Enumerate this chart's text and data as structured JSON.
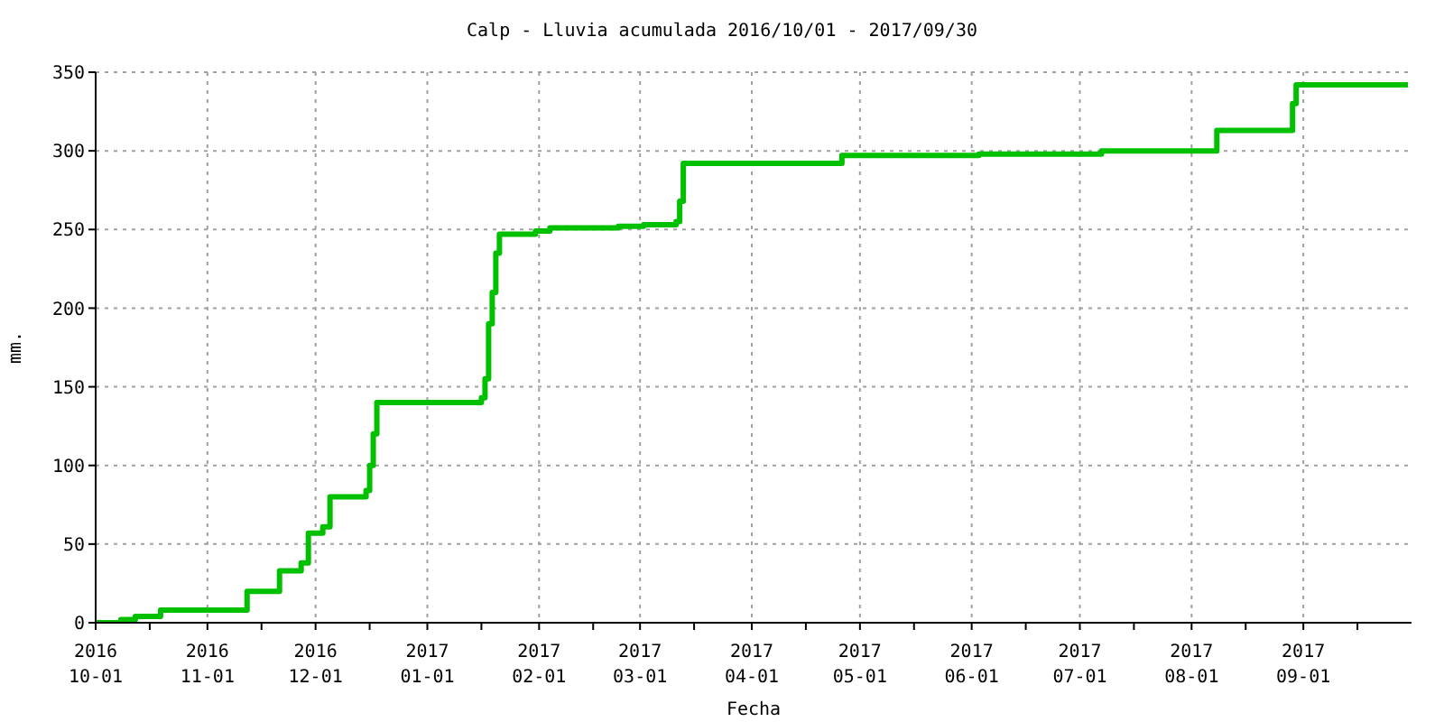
{
  "chart_data": {
    "type": "step",
    "title": "Calp - Lluvia acumulada 2016/10/01 - 2017/09/30",
    "xlabel": "Fecha",
    "ylabel": "mm.",
    "x": [
      "2016-10-01",
      "2016-10-08",
      "2016-10-12",
      "2016-10-19",
      "2016-11-12",
      "2016-11-21",
      "2016-11-27",
      "2016-11-29",
      "2016-12-03",
      "2016-12-05",
      "2016-12-15",
      "2016-12-16",
      "2016-12-17",
      "2016-12-18",
      "2017-01-16",
      "2017-01-17",
      "2017-01-18",
      "2017-01-19",
      "2017-01-20",
      "2017-01-21",
      "2017-01-31",
      "2017-02-04",
      "2017-02-23",
      "2017-03-02",
      "2017-03-11",
      "2017-03-12",
      "2017-03-13",
      "2017-04-26",
      "2017-06-03",
      "2017-07-07",
      "2017-08-08",
      "2017-08-29",
      "2017-08-30",
      "2017-09-30"
    ],
    "series": [
      {
        "color": "#00c000",
        "values": [
          0,
          2,
          4,
          8,
          20,
          33,
          38,
          57,
          61,
          80,
          84,
          100,
          120,
          140,
          143,
          155,
          190,
          210,
          235,
          247,
          249,
          251,
          252,
          253,
          255,
          268,
          292,
          297,
          298,
          300,
          313,
          330,
          342,
          342
        ]
      }
    ],
    "xlim": [
      "2016-10-01",
      "2017-10-01"
    ],
    "xticks": [
      {
        "value": "2016-10-01",
        "label": "2016\n10-01"
      },
      {
        "value": "2016-10-16",
        "label": null
      },
      {
        "value": "2016-11-01",
        "label": "2016\n11-01"
      },
      {
        "value": "2016-11-16",
        "label": null
      },
      {
        "value": "2016-12-01",
        "label": "2016\n12-01"
      },
      {
        "value": "2016-12-16",
        "label": null
      },
      {
        "value": "2017-01-01",
        "label": "2017\n01-01"
      },
      {
        "value": "2017-01-16",
        "label": null
      },
      {
        "value": "2017-02-01",
        "label": "2017\n02-01"
      },
      {
        "value": "2017-02-16",
        "label": null
      },
      {
        "value": "2017-03-01",
        "label": "2017\n03-01"
      },
      {
        "value": "2017-03-16",
        "label": null
      },
      {
        "value": "2017-04-01",
        "label": "2017\n04-01"
      },
      {
        "value": "2017-04-16",
        "label": null
      },
      {
        "value": "2017-05-01",
        "label": "2017\n05-01"
      },
      {
        "value": "2017-05-16",
        "label": null
      },
      {
        "value": "2017-06-01",
        "label": "2017\n06-01"
      },
      {
        "value": "2017-06-16",
        "label": null
      },
      {
        "value": "2017-07-01",
        "label": "2017\n07-01"
      },
      {
        "value": "2017-07-16",
        "label": null
      },
      {
        "value": "2017-08-01",
        "label": "2017\n08-01"
      },
      {
        "value": "2017-08-16",
        "label": null
      },
      {
        "value": "2017-09-01",
        "label": "2017\n09-01"
      },
      {
        "value": "2017-09-16",
        "label": null
      }
    ],
    "ylim": [
      0,
      350
    ],
    "yticks": [
      0,
      50,
      100,
      150,
      200,
      250,
      300,
      350
    ],
    "grid": true
  }
}
